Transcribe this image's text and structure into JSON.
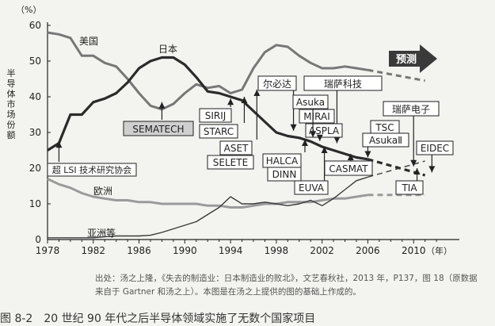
{
  "chart_data": {
    "type": "line",
    "yunit": "（%）",
    "xunit": "（年）",
    "ylabel": "半导体市场份额",
    "xlim": [
      1978,
      2014
    ],
    "ylim": [
      0,
      60
    ],
    "xticks": [
      1978,
      1982,
      1986,
      1990,
      1994,
      1998,
      2002,
      2006,
      2010
    ],
    "yticks": [
      0,
      10,
      20,
      30,
      40,
      50,
      60
    ],
    "grid": false,
    "series": [
      {
        "name": "美国",
        "color": "#777777",
        "x": [
          1978,
          1979,
          1980,
          1981,
          1982,
          1983,
          1984,
          1985,
          1986,
          1987,
          1988,
          1989,
          1990,
          1991,
          1992,
          1993,
          1994,
          1995,
          1996,
          1997,
          1998,
          1999,
          2000,
          2001,
          2002,
          2003,
          2004,
          2005,
          2006
        ],
        "y": [
          58,
          57.5,
          56.5,
          51.5,
          51.5,
          49.5,
          48.5,
          45,
          41,
          37.5,
          36.5,
          38,
          41,
          43.5,
          42.5,
          43,
          41,
          42,
          48,
          52.5,
          54.5,
          54,
          51.5,
          49.5,
          48,
          48,
          48.5,
          48,
          47.5
        ],
        "projection": {
          "x": [
            2006,
            2011
          ],
          "y": [
            47.5,
            44.5
          ]
        }
      },
      {
        "name": "日本",
        "color": "#2b2b2b",
        "x": [
          1978,
          1979,
          1980,
          1981,
          1982,
          1983,
          1984,
          1985,
          1986,
          1987,
          1988,
          1989,
          1990,
          1991,
          1992,
          1993,
          1994,
          1995,
          1996,
          1997,
          1998,
          1999,
          2000,
          2001,
          2002,
          2003,
          2004,
          2005,
          2006
        ],
        "y": [
          25,
          27,
          35,
          35,
          38.5,
          39.5,
          41,
          44,
          48,
          50,
          51,
          51,
          49,
          45.5,
          41.5,
          41,
          40,
          39,
          36,
          33,
          30,
          29,
          28.5,
          27.5,
          26,
          25,
          24,
          23,
          22.5
        ],
        "projection": {
          "x": [
            2006,
            2011
          ],
          "y": [
            22.5,
            18
          ]
        }
      },
      {
        "name": "欧洲",
        "color": "#9a9a9a",
        "x": [
          1978,
          1979,
          1980,
          1981,
          1982,
          1983,
          1984,
          1985,
          1986,
          1987,
          1988,
          1989,
          1990,
          1991,
          1992,
          1993,
          1994,
          1995,
          1996,
          1997,
          1998,
          1999,
          2000,
          2001,
          2002,
          2003,
          2004,
          2005,
          2006
        ],
        "y": [
          17,
          15.5,
          14.5,
          13,
          12,
          11.5,
          11,
          11,
          10.5,
          10.5,
          10,
          10,
          10,
          10,
          9.5,
          9.5,
          9,
          9,
          9.5,
          10,
          10,
          10.5,
          10.5,
          10.5,
          11,
          11.5,
          11.5,
          12,
          12.5
        ],
        "projection": {
          "x": [
            2006,
            2011
          ],
          "y": [
            12.5,
            12.5
          ]
        }
      },
      {
        "name": "亚洲等",
        "color": "#3a3a3a",
        "x": [
          1978,
          1979,
          1980,
          1981,
          1982,
          1983,
          1984,
          1985,
          1986,
          1987,
          1988,
          1989,
          1990,
          1991,
          1992,
          1993,
          1994,
          1995,
          1996,
          1997,
          1998,
          1999,
          2000,
          2001,
          2002,
          2003,
          2004,
          2005,
          2006
        ],
        "y": [
          0.5,
          0.5,
          0.5,
          0.5,
          0.5,
          0.8,
          1,
          1,
          1,
          1.2,
          2,
          3,
          4,
          5,
          7,
          9,
          12,
          10,
          10,
          10.5,
          10,
          9.5,
          10,
          11,
          9.5,
          11.5,
          14,
          16.5,
          17.5
        ],
        "projection": {
          "x": [
            2006,
            2011
          ],
          "y": [
            17.5,
            22
          ]
        }
      }
    ],
    "annotations": [
      {
        "text": "预测",
        "style": "arrow"
      },
      {
        "text": "超 LSI 技术研究协会",
        "style": "box",
        "x": 1979
      },
      {
        "text": "SEMATECH",
        "style": "box-gray",
        "x": 1988
      },
      {
        "text": "SIRIJ",
        "style": "box",
        "x": 1994
      },
      {
        "text": "STARC",
        "style": "box",
        "x": 1995
      },
      {
        "text": "ASET",
        "style": "box",
        "x": 1996
      },
      {
        "text": "SELETE",
        "style": "box",
        "x": 1996
      },
      {
        "text": "尔必达",
        "style": "box",
        "x": 1999
      },
      {
        "text": "瑞萨科技",
        "style": "box",
        "x": 2003
      },
      {
        "text": "Asuka",
        "style": "box",
        "x": 2001
      },
      {
        "text": "MIRAI",
        "style": "box",
        "x": 2001.5
      },
      {
        "text": "ASPLA",
        "style": "box",
        "x": 2002
      },
      {
        "text": "HALCA",
        "style": "box",
        "x": 2001
      },
      {
        "text": "DINN",
        "style": "box",
        "x": 2001
      },
      {
        "text": "EUVA",
        "style": "box",
        "x": 2002
      },
      {
        "text": "CASMAT",
        "style": "box",
        "x": 2004
      },
      {
        "text": "TSC",
        "style": "box",
        "x": 2006
      },
      {
        "text": "AsukaⅡ",
        "style": "box",
        "x": 2006
      },
      {
        "text": "瑞萨电子",
        "style": "box",
        "x": 2010
      },
      {
        "text": "EIDEC",
        "style": "box",
        "x": 2011
      },
      {
        "text": "TIA",
        "style": "box",
        "x": 2010
      }
    ]
  },
  "source_note": "出处：汤之上隆，《失去的制造业：日本制造业的败北》，文艺春秋社，2013 年，P137，图 18（原数据来自于 Gartner 和汤之上）。本图是在汤之上提供的图的基础上作成的。",
  "caption": "图 8-2　20 世纪 90 年代之后半导体领域实施了无数个国家项目"
}
